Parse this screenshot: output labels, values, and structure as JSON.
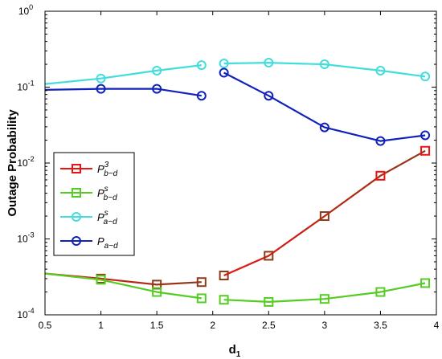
{
  "chart_data": {
    "type": "line",
    "title": "",
    "xlabel": "d",
    "xlabel_sub": "1",
    "ylabel": "Outage Probability",
    "xlim": [
      0.5,
      4
    ],
    "ylim": [
      0.0001,
      1
    ],
    "yscale": "log",
    "grid": false,
    "legend_position": "center-left",
    "x_ticks": [
      "0.5",
      "1",
      "1.5",
      "2",
      "2.5",
      "3",
      "3.5",
      "4"
    ],
    "y_ticks": [
      {
        "value": 0.0001,
        "base": "10",
        "exp": "-4"
      },
      {
        "value": 0.001,
        "base": "10",
        "exp": "-3"
      },
      {
        "value": 0.01,
        "base": "10",
        "exp": "-2"
      },
      {
        "value": 0.1,
        "base": "10",
        "exp": "-1"
      },
      {
        "value": 1,
        "base": "10",
        "exp": "0"
      }
    ],
    "series": [
      {
        "name": "P_{b-d}^3",
        "legend": {
          "base": "P",
          "sup": "3",
          "sub": "b−d"
        },
        "marker": "square",
        "colors": [
          "#ee1111",
          "#8b3a1a"
        ],
        "gradient": true,
        "segments": [
          {
            "x": [
              0.5,
              1.0,
              1.5,
              1.9
            ],
            "y": [
              0.00035,
              0.0003,
              0.00025,
              0.00027
            ],
            "markers": [
              false,
              true,
              true,
              true
            ]
          },
          {
            "x": [
              2.1,
              2.5,
              3.0,
              3.5,
              3.9
            ],
            "y": [
              0.00033,
              0.0006,
              0.002,
              0.0068,
              0.0145
            ],
            "markers": [
              true,
              true,
              true,
              true,
              true
            ]
          }
        ]
      },
      {
        "name": "P_{b-d}^s",
        "legend": {
          "base": "P",
          "sup": "s",
          "sub": "b−d"
        },
        "marker": "square",
        "colors": [
          "#55cc22",
          "#55cc22"
        ],
        "gradient": false,
        "segments": [
          {
            "x": [
              0.5,
              1.0,
              1.5,
              1.9
            ],
            "y": [
              0.00035,
              0.00029,
              0.0002,
              0.000165
            ],
            "markers": [
              false,
              true,
              true,
              true
            ]
          },
          {
            "x": [
              2.1,
              2.5,
              3.0,
              3.5,
              3.9
            ],
            "y": [
              0.000158,
              0.000148,
              0.000162,
              0.0002,
              0.000262
            ],
            "markers": [
              true,
              true,
              true,
              true,
              true
            ]
          }
        ]
      },
      {
        "name": "P_{a-d}^s",
        "legend": {
          "base": "P",
          "sup": "s",
          "sub": "a−d"
        },
        "marker": "circle",
        "colors": [
          "#44dddd",
          "#44dddd"
        ],
        "gradient": false,
        "segments": [
          {
            "x": [
              0.5,
              1.0,
              1.5,
              1.9
            ],
            "y": [
              0.11,
              0.13,
              0.165,
              0.195
            ],
            "markers": [
              false,
              true,
              true,
              true
            ]
          },
          {
            "x": [
              2.1,
              2.5,
              3.0,
              3.5,
              3.9
            ],
            "y": [
              0.205,
              0.21,
              0.2,
              0.165,
              0.138
            ],
            "markers": [
              true,
              true,
              true,
              true,
              true
            ]
          }
        ]
      },
      {
        "name": "P_{a-d}",
        "legend": {
          "base": "P",
          "sup": "",
          "sub": "a−d"
        },
        "marker": "circle",
        "colors": [
          "#1122bb",
          "#1122bb"
        ],
        "gradient": false,
        "segments": [
          {
            "x": [
              0.5,
              1.0,
              1.5,
              1.9
            ],
            "y": [
              0.092,
              0.095,
              0.095,
              0.077
            ],
            "markers": [
              false,
              true,
              true,
              true
            ]
          },
          {
            "x": [
              2.1,
              2.5,
              3.0,
              3.5,
              3.9
            ],
            "y": [
              0.155,
              0.077,
              0.0295,
              0.0195,
              0.0232
            ],
            "markers": [
              true,
              true,
              true,
              true,
              true
            ]
          }
        ]
      }
    ]
  }
}
